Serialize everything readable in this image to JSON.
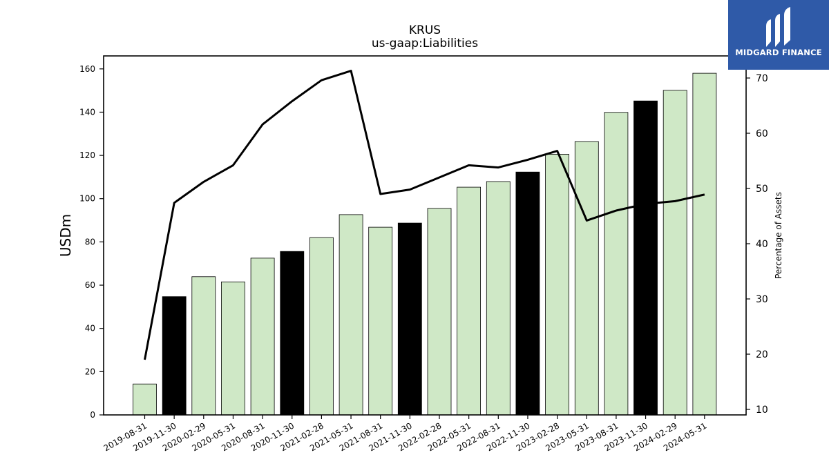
{
  "logo": {
    "text": "MIDGARD FINANCE",
    "icon": "midgard-logo-icon",
    "color": "#2f5aa8"
  },
  "chart_data": {
    "type": "bar",
    "title": "KRUS",
    "subtitle": "us-gaap:Liabilities",
    "ylabel": "USDm",
    "y2label": "Percentage of Assets",
    "ylim": [
      0,
      166
    ],
    "y2lim": [
      9,
      74
    ],
    "yticks": [
      0,
      20,
      40,
      60,
      80,
      100,
      120,
      140,
      160
    ],
    "y2ticks": [
      10,
      20,
      30,
      40,
      50,
      60,
      70
    ],
    "categories": [
      "2019-08-31",
      "2019-11-30",
      "2020-02-29",
      "2020-05-31",
      "2020-08-31",
      "2020-11-30",
      "2021-02-28",
      "2021-05-31",
      "2021-08-31",
      "2021-11-30",
      "2022-02-28",
      "2022-05-31",
      "2022-08-31",
      "2022-11-30",
      "2023-02-28",
      "2023-05-31",
      "2023-08-31",
      "2023-11-30",
      "2024-02-29",
      "2024-05-31"
    ],
    "series": [
      {
        "kind": "bar",
        "values": [
          14.3,
          54.7,
          63.9,
          61.5,
          72.5,
          75.6,
          82.0,
          92.6,
          86.8,
          88.7,
          95.5,
          105.3,
          107.9,
          112.3,
          120.5,
          126.4,
          139.9,
          145.2,
          150.1,
          158.0
        ],
        "highlighted": [
          false,
          true,
          false,
          false,
          false,
          true,
          false,
          false,
          false,
          true,
          false,
          false,
          false,
          true,
          false,
          false,
          false,
          true,
          false,
          false
        ],
        "color": "#cfe8c6",
        "highlight_color": "#000000"
      },
      {
        "kind": "line",
        "axis": "right",
        "values": [
          19.0,
          47.4,
          51.2,
          54.2,
          61.6,
          65.8,
          69.6,
          71.3,
          49.0,
          49.8,
          52.0,
          54.2,
          53.8,
          55.2,
          56.8,
          44.2,
          46.0,
          47.2,
          47.7,
          48.9
        ],
        "color": "#000000"
      }
    ]
  }
}
